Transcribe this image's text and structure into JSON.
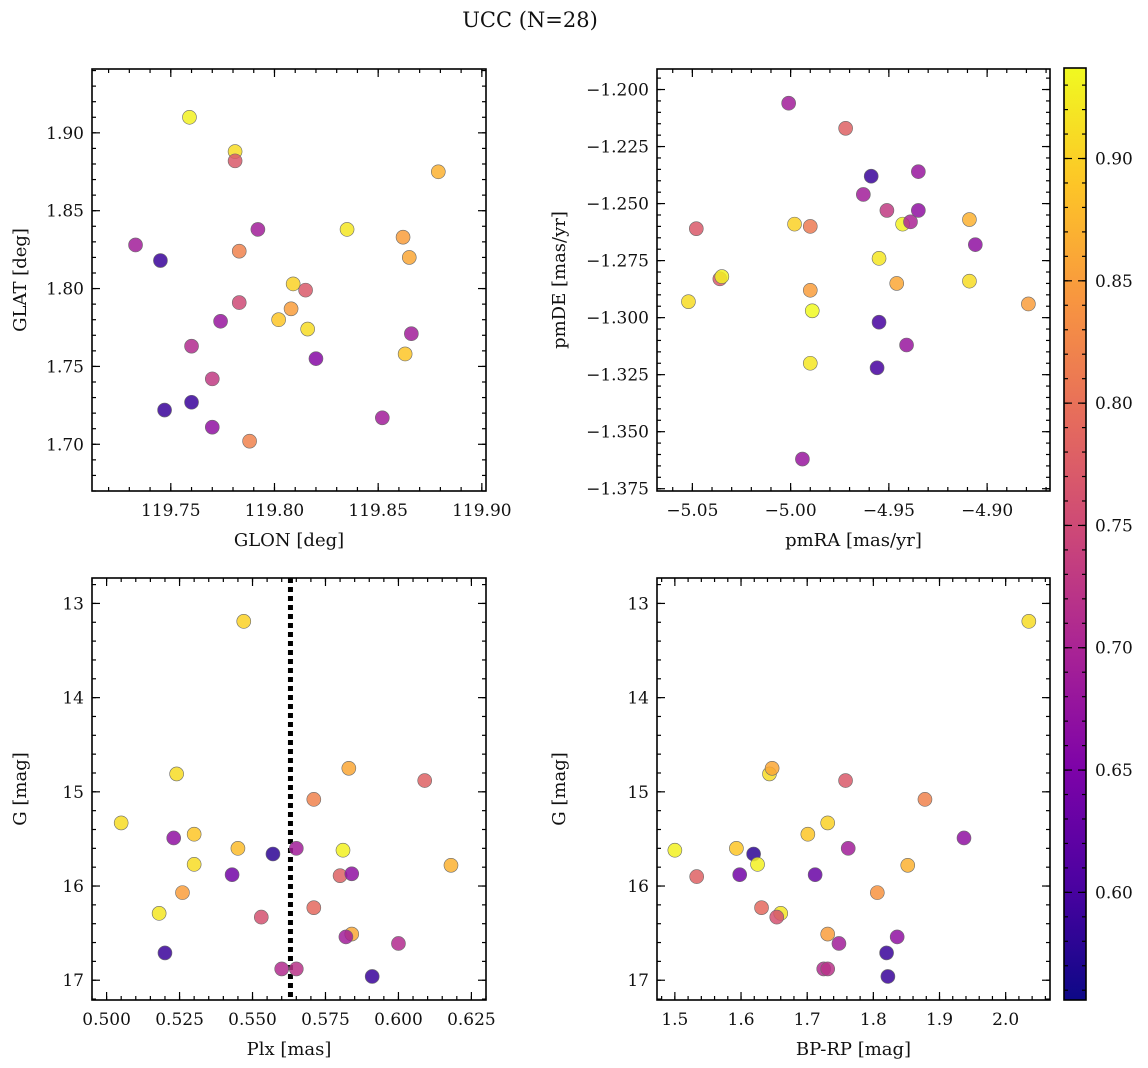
{
  "figure": {
    "title": "UCC (N=28)"
  },
  "colorbar": {
    "ticks": [
      0.6,
      0.65,
      0.7,
      0.75,
      0.8,
      0.85,
      0.9
    ],
    "tick_labels": [
      "0.60",
      "0.65",
      "0.70",
      "0.75",
      "0.80",
      "0.85",
      "0.90"
    ],
    "range": [
      0.556,
      0.937
    ],
    "colormap": "plasma"
  },
  "chart_data": [
    {
      "type": "scatter",
      "title": "",
      "xlabel": "GLON [deg]",
      "ylabel": "GLAT [deg]",
      "xlim": [
        119.712,
        119.902
      ],
      "ylim": [
        1.67,
        1.941
      ],
      "inverted_y": false,
      "xticks": [
        119.75,
        119.8,
        119.85,
        119.9
      ],
      "xtick_labels": [
        "119.75",
        "119.80",
        "119.85",
        "119.90"
      ],
      "yticks": [
        1.7,
        1.75,
        1.8,
        1.85,
        1.9
      ],
      "ytick_labels": [
        "1.70",
        "1.75",
        "1.80",
        "1.85",
        "1.90"
      ],
      "x": [
        119.759,
        119.781,
        119.781,
        119.879,
        119.835,
        119.792,
        119.733,
        119.783,
        119.862,
        119.745,
        119.865,
        119.809,
        119.815,
        119.783,
        119.808,
        119.774,
        119.802,
        119.816,
        119.866,
        119.76,
        119.82,
        119.863,
        119.77,
        119.76,
        119.747,
        119.852,
        119.77,
        119.788
      ],
      "y": [
        1.91,
        1.888,
        1.882,
        1.875,
        1.838,
        1.838,
        1.828,
        1.824,
        1.833,
        1.818,
        1.82,
        1.803,
        1.799,
        1.791,
        1.787,
        1.779,
        1.78,
        1.774,
        1.771,
        1.763,
        1.755,
        1.758,
        1.742,
        1.727,
        1.722,
        1.717,
        1.711,
        1.702
      ],
      "color": [
        0.93,
        0.91,
        0.77,
        0.87,
        0.92,
        0.69,
        0.69,
        0.82,
        0.85,
        0.59,
        0.86,
        0.9,
        0.77,
        0.75,
        0.85,
        0.68,
        0.89,
        0.91,
        0.69,
        0.71,
        0.66,
        0.89,
        0.73,
        0.59,
        0.59,
        0.69,
        0.67,
        0.82
      ]
    },
    {
      "type": "scatter",
      "title": "",
      "xlabel": "pmRA [mas/yr]",
      "ylabel": "pmDE [mas/yr]",
      "xlim": [
        -5.068,
        -4.868
      ],
      "ylim": [
        -1.376,
        -1.191
      ],
      "inverted_y": false,
      "xticks": [
        -5.05,
        -5.0,
        -4.95,
        -4.9
      ],
      "xtick_labels": [
        "−5.05",
        "−5.00",
        "−4.95",
        "−4.90"
      ],
      "yticks": [
        -1.375,
        -1.35,
        -1.325,
        -1.3,
        -1.275,
        -1.25,
        -1.225,
        -1.2
      ],
      "ytick_labels": [
        "−1.375",
        "−1.350",
        "−1.325",
        "−1.300",
        "−1.275",
        "−1.250",
        "−1.225",
        "−1.200"
      ],
      "x": [
        -5.001,
        -4.972,
        -4.959,
        -4.935,
        -4.963,
        -5.048,
        -4.998,
        -4.99,
        -4.951,
        -4.943,
        -4.939,
        -4.935,
        -4.909,
        -4.906,
        -5.052,
        -5.036,
        -5.035,
        -4.955,
        -4.946,
        -4.909,
        -4.879,
        -4.99,
        -4.989,
        -4.955,
        -4.941,
        -4.99,
        -4.956,
        -4.994
      ],
      "y": [
        -1.206,
        -1.217,
        -1.238,
        -1.236,
        -1.246,
        -1.261,
        -1.259,
        -1.26,
        -1.253,
        -1.259,
        -1.258,
        -1.253,
        -1.257,
        -1.268,
        -1.293,
        -1.283,
        -1.282,
        -1.274,
        -1.285,
        -1.284,
        -1.294,
        -1.288,
        -1.297,
        -1.302,
        -1.312,
        -1.32,
        -1.322,
        -1.362
      ],
      "color": [
        0.69,
        0.78,
        0.59,
        0.68,
        0.69,
        0.77,
        0.9,
        0.81,
        0.73,
        0.93,
        0.7,
        0.67,
        0.87,
        0.67,
        0.91,
        0.77,
        0.93,
        0.92,
        0.86,
        0.91,
        0.85,
        0.85,
        0.94,
        0.6,
        0.68,
        0.92,
        0.6,
        0.68
      ]
    },
    {
      "type": "scatter",
      "title": "",
      "xlabel": "Plx [mas]",
      "ylabel": "G [mag]",
      "xlim": [
        0.495,
        0.63
      ],
      "ylim": [
        12.73,
        17.21
      ],
      "inverted_y": true,
      "xticks": [
        0.5,
        0.525,
        0.55,
        0.575,
        0.6,
        0.625
      ],
      "xtick_labels": [
        "0.500",
        "0.525",
        "0.550",
        "0.575",
        "0.600",
        "0.625"
      ],
      "yticks": [
        13,
        14,
        15,
        16,
        17
      ],
      "ytick_labels": [
        "13",
        "14",
        "15",
        "16",
        "17"
      ],
      "vline": {
        "x": 0.563,
        "style": "dotted"
      },
      "x": [
        0.547,
        0.524,
        0.583,
        0.609,
        0.571,
        0.505,
        0.523,
        0.53,
        0.545,
        0.557,
        0.565,
        0.581,
        0.53,
        0.618,
        0.526,
        0.543,
        0.58,
        0.584,
        0.518,
        0.571,
        0.553,
        0.584,
        0.582,
        0.6,
        0.52,
        0.56,
        0.565,
        0.591
      ],
      "y": [
        13.19,
        14.81,
        14.75,
        14.88,
        15.08,
        15.33,
        15.49,
        15.45,
        15.6,
        15.66,
        15.6,
        15.62,
        15.77,
        15.78,
        16.07,
        15.88,
        15.89,
        15.87,
        16.29,
        16.23,
        16.33,
        16.51,
        16.54,
        16.61,
        16.71,
        16.88,
        16.88,
        16.96
      ],
      "color": [
        0.9,
        0.91,
        0.86,
        0.78,
        0.82,
        0.91,
        0.67,
        0.89,
        0.88,
        0.58,
        0.69,
        0.93,
        0.91,
        0.87,
        0.85,
        0.64,
        0.78,
        0.67,
        0.92,
        0.79,
        0.76,
        0.86,
        0.69,
        0.71,
        0.59,
        0.71,
        0.72,
        0.59
      ]
    },
    {
      "type": "scatter",
      "title": "",
      "xlabel": "BP-RP [mag]",
      "ylabel": "G [mag]",
      "xlim": [
        1.473,
        2.067
      ],
      "ylim": [
        12.73,
        17.21
      ],
      "inverted_y": true,
      "xticks": [
        1.5,
        1.6,
        1.7,
        1.8,
        1.9,
        2.0
      ],
      "xtick_labels": [
        "1.5",
        "1.6",
        "1.7",
        "1.8",
        "1.9",
        "2.0"
      ],
      "yticks": [
        13,
        14,
        15,
        16,
        17
      ],
      "ytick_labels": [
        "13",
        "14",
        "15",
        "16",
        "17"
      ],
      "x": [
        2.035,
        1.643,
        1.647,
        1.758,
        1.878,
        1.731,
        1.937,
        1.5,
        1.593,
        1.619,
        1.701,
        1.762,
        1.625,
        1.852,
        1.533,
        1.598,
        1.712,
        1.806,
        1.66,
        1.631,
        1.654,
        1.731,
        1.748,
        1.836,
        1.82,
        1.725,
        1.731,
        1.822
      ],
      "y": [
        13.19,
        14.81,
        14.75,
        14.88,
        15.08,
        15.33,
        15.49,
        15.62,
        15.6,
        15.66,
        15.45,
        15.6,
        15.77,
        15.78,
        15.9,
        15.88,
        15.88,
        16.07,
        16.29,
        16.23,
        16.33,
        16.51,
        16.61,
        16.54,
        16.71,
        16.88,
        16.88,
        16.96
      ],
      "color": [
        0.91,
        0.91,
        0.86,
        0.77,
        0.82,
        0.9,
        0.67,
        0.93,
        0.89,
        0.58,
        0.89,
        0.69,
        0.93,
        0.87,
        0.78,
        0.64,
        0.63,
        0.84,
        0.92,
        0.79,
        0.76,
        0.85,
        0.69,
        0.67,
        0.59,
        0.71,
        0.72,
        0.59
      ]
    }
  ]
}
